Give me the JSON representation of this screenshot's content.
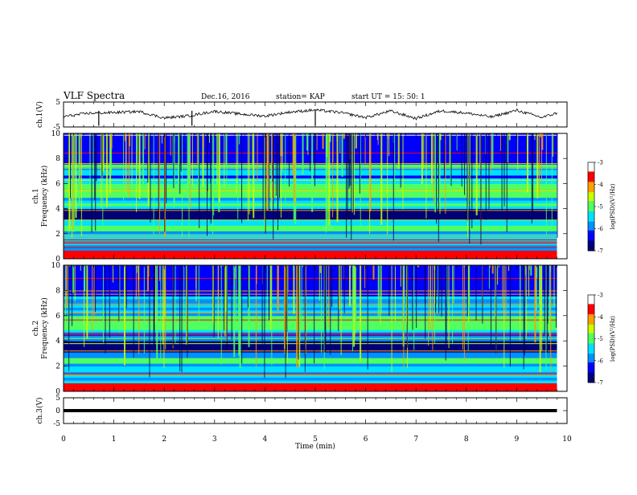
{
  "header": {
    "title": "VLF Spectra",
    "date": "Dec.16, 2016",
    "station": "station= KAP",
    "start": "start  UT =   15: 50: 1"
  },
  "colors": {
    "waveform": "#000000",
    "colormap": [
      "#00007a",
      "#0000ff",
      "#0090ff",
      "#00e0ff",
      "#50ff60",
      "#c8ff00",
      "#ffa000",
      "#ff0000",
      "#ffffff"
    ]
  },
  "chart_data": [
    {
      "type": "line",
      "ylabel": "ch.1(V)",
      "ylim": [
        -5,
        5
      ],
      "yticks": [
        "5",
        "-5"
      ],
      "xlim": [
        0,
        10
      ],
      "series": [
        {
          "x": [
            0,
            0.5,
            1,
            1.5,
            2,
            2.5,
            3,
            3.5,
            4,
            4.5,
            5,
            5.5,
            6,
            6.5,
            7,
            7.5,
            8,
            8.5,
            9,
            9.5,
            9.8
          ],
          "y": [
            -0.8,
            0.5,
            0.8,
            1.2,
            -1.4,
            -0.5,
            1.3,
            0.2,
            -0.6,
            1.0,
            1.8,
            0.8,
            -1.2,
            1.4,
            -1.6,
            1.5,
            0.6,
            -1.0,
            1.7,
            -1.2,
            0.6
          ]
        }
      ]
    },
    {
      "type": "heatmap",
      "ylabel": "ch.1\nFrequency (kHz)",
      "ylim": [
        0,
        10
      ],
      "yticks": [
        "0",
        "2",
        "4",
        "6",
        "8",
        "10"
      ],
      "xlim": [
        0,
        10
      ],
      "colorbar": {
        "label": "log(PSD)(V²/Hz)",
        "range": [
          -7,
          -3
        ],
        "ticks": [
          "-3",
          "-4",
          "-5",
          "-6",
          "-7"
        ]
      }
    },
    {
      "type": "heatmap",
      "ylabel": "ch.2\nFrequency (kHz)",
      "ylim": [
        0,
        10
      ],
      "yticks": [
        "0",
        "2",
        "4",
        "6",
        "8",
        "10"
      ],
      "xlim": [
        0,
        10
      ],
      "colorbar": {
        "label": "log(PSD)(V²/Hz)",
        "range": [
          -7,
          -3
        ],
        "ticks": [
          "-3",
          "-4",
          "-5",
          "-6",
          "-7"
        ]
      }
    },
    {
      "type": "line",
      "ylabel": "ch.3(V)",
      "ylim": [
        -5,
        5
      ],
      "yticks": [
        "5",
        "0",
        "-5"
      ],
      "xlim": [
        0,
        10
      ],
      "series": [
        {
          "x": [
            0,
            9.8
          ],
          "y": [
            0,
            0
          ]
        }
      ]
    }
  ],
  "xaxis": {
    "label": "Time (min)",
    "ticks": [
      "0",
      "1",
      "2",
      "3",
      "4",
      "5",
      "6",
      "7",
      "8",
      "9",
      "10"
    ]
  }
}
